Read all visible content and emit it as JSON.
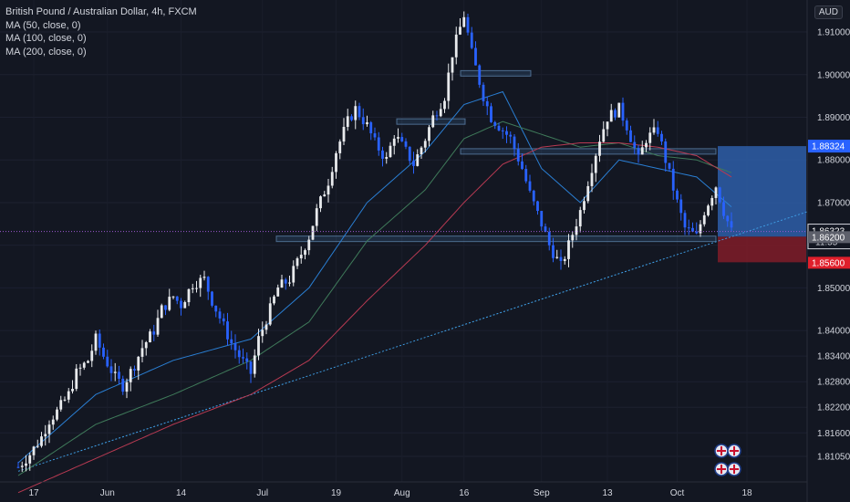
{
  "chart_data": {
    "type": "candlestick",
    "title": "British Pound / Australian Dollar, 4h, FXCM",
    "indicators": [
      "MA (50, close, 0)",
      "MA (100, close, 0)",
      "MA (200, close, 0)"
    ],
    "currency": "AUD",
    "ylim": [
      1.8045,
      1.9175
    ],
    "y_ticks": [
      "1.91000",
      "1.90000",
      "1.89000",
      "1.88000",
      "1.87000",
      "1.86000",
      "1.85000",
      "1.84000",
      "1.83400",
      "1.82800",
      "1.82200",
      "1.81600",
      "1.81050"
    ],
    "x_ticks": [
      "17",
      "Jun",
      "14",
      "Jul",
      "19",
      "Aug",
      "16",
      "Sep",
      "13",
      "Oct",
      "18"
    ],
    "last_price": "1.86323",
    "countdown": "11:55",
    "target_price": "1.88324",
    "entry_price": "1.86200",
    "stop_price": "1.85600",
    "price_path": [
      [
        0,
        1.808
      ],
      [
        3,
        1.811
      ],
      [
        6,
        1.815
      ],
      [
        8,
        1.819
      ],
      [
        10,
        1.821
      ],
      [
        13,
        1.825
      ],
      [
        15,
        1.83
      ],
      [
        18,
        1.833
      ],
      [
        20,
        1.838
      ],
      [
        22,
        1.834
      ],
      [
        25,
        1.829
      ],
      [
        27,
        1.827
      ],
      [
        30,
        1.832
      ],
      [
        32,
        1.836
      ],
      [
        35,
        1.84
      ],
      [
        37,
        1.845
      ],
      [
        40,
        1.848
      ],
      [
        42,
        1.846
      ],
      [
        45,
        1.851
      ],
      [
        48,
        1.852
      ],
      [
        50,
        1.847
      ],
      [
        52,
        1.843
      ],
      [
        55,
        1.837
      ],
      [
        57,
        1.834
      ],
      [
        60,
        1.83
      ],
      [
        62,
        1.838
      ],
      [
        65,
        1.845
      ],
      [
        67,
        1.85
      ],
      [
        70,
        1.852
      ],
      [
        72,
        1.856
      ],
      [
        75,
        1.862
      ],
      [
        77,
        1.868
      ],
      [
        80,
        1.875
      ],
      [
        82,
        1.882
      ],
      [
        85,
        1.889
      ],
      [
        87,
        1.892
      ],
      [
        90,
        1.888
      ],
      [
        92,
        1.884
      ],
      [
        95,
        1.88
      ],
      [
        97,
        1.886
      ],
      [
        100,
        1.882
      ],
      [
        102,
        1.879
      ],
      [
        105,
        1.885
      ],
      [
        107,
        1.89
      ],
      [
        110,
        1.895
      ],
      [
        112,
        1.905
      ],
      [
        115,
        1.914
      ],
      [
        117,
        1.905
      ],
      [
        120,
        1.895
      ],
      [
        122,
        1.89
      ],
      [
        125,
        1.887
      ],
      [
        127,
        1.885
      ],
      [
        130,
        1.878
      ],
      [
        132,
        1.872
      ],
      [
        135,
        1.865
      ],
      [
        137,
        1.86
      ],
      [
        140,
        1.855
      ],
      [
        142,
        1.86
      ],
      [
        145,
        1.868
      ],
      [
        147,
        1.875
      ],
      [
        150,
        1.885
      ],
      [
        152,
        1.89
      ],
      [
        155,
        1.892
      ],
      [
        157,
        1.888
      ],
      [
        160,
        1.88
      ],
      [
        162,
        1.885
      ],
      [
        165,
        1.887
      ],
      [
        167,
        1.88
      ],
      [
        170,
        1.87
      ],
      [
        172,
        1.864
      ],
      [
        175,
        1.862
      ],
      [
        177,
        1.868
      ],
      [
        180,
        1.874
      ],
      [
        182,
        1.868
      ],
      [
        184,
        1.8632
      ]
    ],
    "ma_50": [
      [
        0,
        1.809
      ],
      [
        20,
        1.825
      ],
      [
        40,
        1.833
      ],
      [
        60,
        1.838
      ],
      [
        75,
        1.85
      ],
      [
        90,
        1.87
      ],
      [
        105,
        1.882
      ],
      [
        115,
        1.893
      ],
      [
        125,
        1.896
      ],
      [
        135,
        1.878
      ],
      [
        145,
        1.87
      ],
      [
        155,
        1.88
      ],
      [
        165,
        1.878
      ],
      [
        175,
        1.876
      ],
      [
        184,
        1.869
      ]
    ],
    "ma_100": [
      [
        0,
        1.806
      ],
      [
        20,
        1.818
      ],
      [
        40,
        1.825
      ],
      [
        60,
        1.833
      ],
      [
        75,
        1.842
      ],
      [
        90,
        1.861
      ],
      [
        105,
        1.873
      ],
      [
        115,
        1.885
      ],
      [
        125,
        1.889
      ],
      [
        135,
        1.886
      ],
      [
        145,
        1.883
      ],
      [
        155,
        1.884
      ],
      [
        165,
        1.881
      ],
      [
        175,
        1.88
      ],
      [
        184,
        1.877
      ]
    ],
    "ma_200": [
      [
        0,
        1.802
      ],
      [
        20,
        1.81
      ],
      [
        40,
        1.818
      ],
      [
        60,
        1.825
      ],
      [
        75,
        1.833
      ],
      [
        90,
        1.847
      ],
      [
        105,
        1.86
      ],
      [
        115,
        1.87
      ],
      [
        125,
        1.879
      ],
      [
        135,
        1.883
      ],
      [
        145,
        1.884
      ],
      [
        155,
        1.884
      ],
      [
        165,
        1.883
      ],
      [
        175,
        1.881
      ],
      [
        184,
        1.876
      ]
    ],
    "trendline": [
      [
        0,
        1.807
      ],
      [
        184,
        1.862
      ]
    ],
    "horizontal_levels": [
      1.9003,
      1.889,
      1.882,
      1.8615
    ],
    "colors": {
      "background": "#131722",
      "candle_up": "#e8eaed",
      "candle_down": "#2962ff",
      "ma_50": "#2a7fd4",
      "ma_100": "#3f7a5a",
      "ma_200": "#b83a52",
      "trendline": "#3fa0e8",
      "target_zone": "#2e5ea8",
      "stop_zone": "#7a1c28",
      "last_price_line": "#9b59d0"
    }
  }
}
